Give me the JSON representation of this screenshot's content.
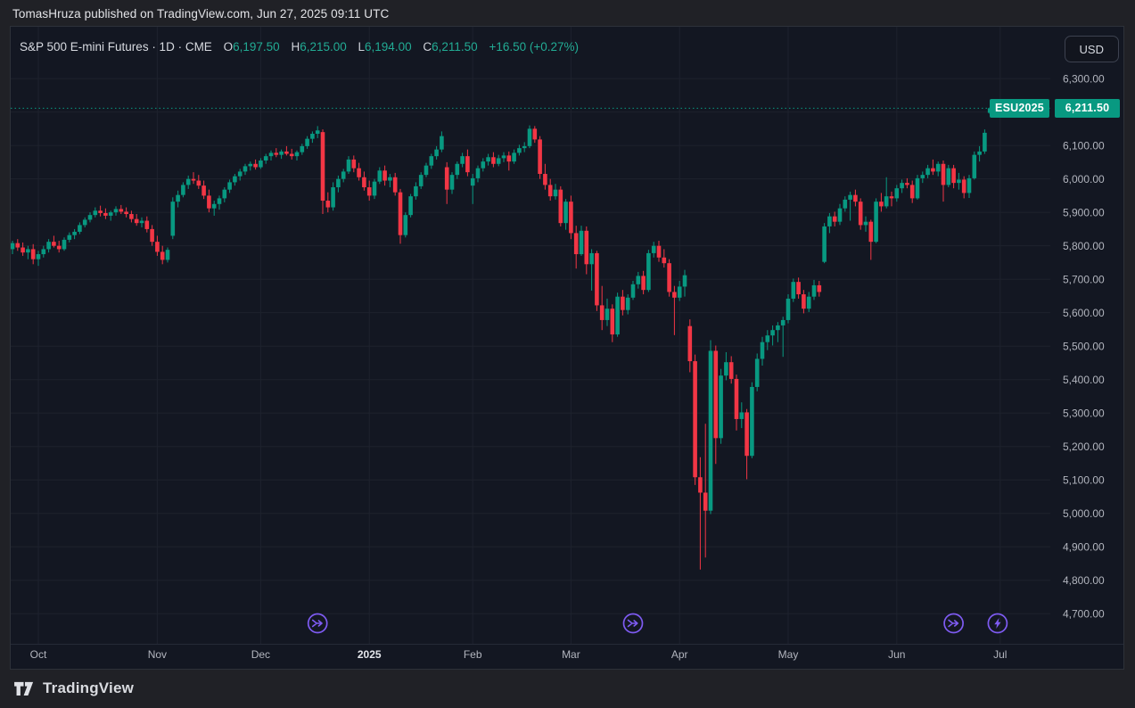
{
  "top_bar": {
    "attribution": "TomasHruza published on TradingView.com, Jun 27, 2025 09:11 UTC"
  },
  "legend": {
    "title": "S&P 500 E-mini Futures · 1D · CME",
    "ohlc": [
      {
        "label": "O",
        "value": "6,197.50"
      },
      {
        "label": "H",
        "value": "6,215.00"
      },
      {
        "label": "L",
        "value": "6,194.00"
      },
      {
        "label": "C",
        "value": "6,211.50"
      }
    ],
    "change": "+16.50 (+0.27%)"
  },
  "currency_button": {
    "label": "USD"
  },
  "price_tag": {
    "symbol": "ESU2025",
    "price": "6,211.50"
  },
  "footer": {
    "brand": "TradingView"
  },
  "colors": {
    "up": "#089981",
    "down": "#f23645",
    "accent_text": "#22ab94",
    "tag_bg": "#089981",
    "event_purple": "#7e5bf2",
    "grid": "#1e222d",
    "axis_text": "#b2b5be",
    "bold_tick_text": "#e4e6eb",
    "panel_bg": "#131722",
    "outer_bg": "#202126"
  },
  "chart_data": {
    "type": "candlestick",
    "title": "S&P 500 E-mini Futures",
    "interval": "1D",
    "exchange": "CME",
    "contract": "ESU2025",
    "currency": "USD",
    "last": {
      "open": 6197.5,
      "high": 6215.0,
      "low": 6194.0,
      "close": 6211.5,
      "change": 16.5,
      "change_pct": 0.27
    },
    "y_axis": {
      "plot_min": 4610,
      "plot_max": 6455,
      "ticks": [
        {
          "value": 6300,
          "label": "6,300.00"
        },
        {
          "value": 6200,
          "label": ""
        },
        {
          "value": 6100,
          "label": "6,100.00"
        },
        {
          "value": 6000,
          "label": "6,000.00"
        },
        {
          "value": 5900,
          "label": "5,900.00"
        },
        {
          "value": 5800,
          "label": "5,800.00"
        },
        {
          "value": 5700,
          "label": "5,700.00"
        },
        {
          "value": 5600,
          "label": "5,600.00"
        },
        {
          "value": 5500,
          "label": "5,500.00"
        },
        {
          "value": 5400,
          "label": "5,400.00"
        },
        {
          "value": 5300,
          "label": "5,300.00"
        },
        {
          "value": 5200,
          "label": "5,200.00"
        },
        {
          "value": 5100,
          "label": "5,100.00"
        },
        {
          "value": 5000,
          "label": "5,000.00"
        },
        {
          "value": 4900,
          "label": "4,900.00"
        },
        {
          "value": 4800,
          "label": "4,800.00"
        },
        {
          "value": 4700,
          "label": "4,700.00"
        }
      ]
    },
    "x_axis": {
      "ticks": [
        {
          "label": "Oct",
          "index": 5
        },
        {
          "label": "Nov",
          "index": 28
        },
        {
          "label": "Dec",
          "index": 48
        },
        {
          "label": "2025",
          "index": 69,
          "bold": true
        },
        {
          "label": "Feb",
          "index": 89
        },
        {
          "label": "Mar",
          "index": 108
        },
        {
          "label": "Apr",
          "index": 129
        },
        {
          "label": "May",
          "index": 150
        },
        {
          "label": "Jun",
          "index": 171
        },
        {
          "label": "Jul",
          "index": 191
        }
      ]
    },
    "events": [
      {
        "icon": "contract-rollover",
        "index": 59
      },
      {
        "icon": "contract-rollover",
        "index": 120
      },
      {
        "icon": "contract-rollover",
        "index": 182
      },
      {
        "icon": "lightning",
        "index": 190.5
      }
    ],
    "candles": [
      [
        5790,
        5815,
        5775,
        5808
      ],
      [
        5808,
        5820,
        5785,
        5795
      ],
      [
        5795,
        5810,
        5770,
        5780
      ],
      [
        5780,
        5800,
        5760,
        5790
      ],
      [
        5790,
        5805,
        5745,
        5760
      ],
      [
        5760,
        5785,
        5740,
        5775
      ],
      [
        5775,
        5800,
        5765,
        5790
      ],
      [
        5790,
        5820,
        5780,
        5812
      ],
      [
        5812,
        5830,
        5795,
        5800
      ],
      [
        5800,
        5815,
        5780,
        5790
      ],
      [
        5790,
        5825,
        5785,
        5818
      ],
      [
        5818,
        5840,
        5810,
        5832
      ],
      [
        5832,
        5850,
        5820,
        5842
      ],
      [
        5842,
        5870,
        5835,
        5862
      ],
      [
        5862,
        5885,
        5855,
        5878
      ],
      [
        5878,
        5900,
        5870,
        5892
      ],
      [
        5892,
        5915,
        5885,
        5905
      ],
      [
        5905,
        5920,
        5888,
        5898
      ],
      [
        5898,
        5912,
        5880,
        5890
      ],
      [
        5890,
        5905,
        5875,
        5900
      ],
      [
        5900,
        5918,
        5890,
        5910
      ],
      [
        5910,
        5922,
        5895,
        5902
      ],
      [
        5902,
        5915,
        5885,
        5895
      ],
      [
        5895,
        5905,
        5870,
        5880
      ],
      [
        5880,
        5895,
        5860,
        5868
      ],
      [
        5868,
        5885,
        5855,
        5875
      ],
      [
        5875,
        5888,
        5840,
        5850
      ],
      [
        5850,
        5862,
        5800,
        5812
      ],
      [
        5812,
        5830,
        5770,
        5782
      ],
      [
        5782,
        5800,
        5745,
        5758
      ],
      [
        5758,
        5795,
        5750,
        5788
      ],
      [
        5830,
        5945,
        5820,
        5932
      ],
      [
        5932,
        5965,
        5915,
        5952
      ],
      [
        5952,
        5990,
        5945,
        5982
      ],
      [
        5982,
        6010,
        5970,
        6000
      ],
      [
        6000,
        6020,
        5985,
        5995
      ],
      [
        5995,
        6012,
        5970,
        5980
      ],
      [
        5980,
        5995,
        5940,
        5950
      ],
      [
        5950,
        5968,
        5900,
        5912
      ],
      [
        5912,
        5935,
        5890,
        5925
      ],
      [
        5925,
        5950,
        5908,
        5942
      ],
      [
        5942,
        5975,
        5930,
        5968
      ],
      [
        5968,
        5998,
        5958,
        5990
      ],
      [
        5990,
        6015,
        5980,
        6008
      ],
      [
        6008,
        6030,
        5995,
        6022
      ],
      [
        6022,
        6045,
        6012,
        6038
      ],
      [
        6038,
        6052,
        6025,
        6045
      ],
      [
        6045,
        6058,
        6028,
        6035
      ],
      [
        6035,
        6062,
        6030,
        6055
      ],
      [
        6055,
        6075,
        6045,
        6068
      ],
      [
        6068,
        6085,
        6055,
        6078
      ],
      [
        6078,
        6092,
        6065,
        6072
      ],
      [
        6072,
        6088,
        6060,
        6082
      ],
      [
        6082,
        6098,
        6070,
        6075
      ],
      [
        6075,
        6090,
        6058,
        6068
      ],
      [
        6068,
        6085,
        6055,
        6080
      ],
      [
        6080,
        6105,
        6072,
        6098
      ],
      [
        6098,
        6128,
        6090,
        6120
      ],
      [
        6120,
        6142,
        6108,
        6135
      ],
      [
        6135,
        6158,
        6122,
        6145
      ],
      [
        6140,
        6148,
        5895,
        5935
      ],
      [
        5935,
        5960,
        5900,
        5915
      ],
      [
        5915,
        5990,
        5905,
        5975
      ],
      [
        5975,
        6010,
        5960,
        6000
      ],
      [
        6000,
        6030,
        5990,
        6022
      ],
      [
        6022,
        6068,
        6015,
        6058
      ],
      [
        6058,
        6070,
        6020,
        6032
      ],
      [
        6032,
        6048,
        5995,
        6005
      ],
      [
        6005,
        6022,
        5965,
        5975
      ],
      [
        5975,
        5995,
        5935,
        5950
      ],
      [
        5950,
        6000,
        5940,
        5992
      ],
      [
        5992,
        6035,
        5985,
        6025
      ],
      [
        6025,
        6040,
        5980,
        5995
      ],
      [
        5995,
        6015,
        5975,
        6005
      ],
      [
        6005,
        6018,
        5950,
        5960
      ],
      [
        5960,
        5970,
        5806,
        5832
      ],
      [
        5832,
        5900,
        5825,
        5892
      ],
      [
        5892,
        5955,
        5885,
        5948
      ],
      [
        5948,
        5990,
        5938,
        5978
      ],
      [
        5978,
        6020,
        5970,
        6012
      ],
      [
        6012,
        6048,
        6005,
        6040
      ],
      [
        6040,
        6075,
        6030,
        6068
      ],
      [
        6068,
        6098,
        6058,
        6088
      ],
      [
        6088,
        6142,
        6080,
        6128
      ],
      [
        6035,
        6050,
        5925,
        5968
      ],
      [
        5968,
        6020,
        5955,
        6012
      ],
      [
        6012,
        6052,
        6000,
        6045
      ],
      [
        6045,
        6078,
        6035,
        6068
      ],
      [
        6068,
        6088,
        6008,
        6020
      ],
      [
        5980,
        6015,
        5925,
        6002
      ],
      [
        6002,
        6040,
        5990,
        6032
      ],
      [
        6032,
        6062,
        6022,
        6052
      ],
      [
        6052,
        6075,
        6040,
        6065
      ],
      [
        6065,
        6080,
        6035,
        6045
      ],
      [
        6045,
        6072,
        6038,
        6062
      ],
      [
        6062,
        6080,
        6050,
        6070
      ],
      [
        6070,
        6082,
        6025,
        6052
      ],
      [
        6052,
        6088,
        6045,
        6078
      ],
      [
        6078,
        6102,
        6070,
        6092
      ],
      [
        6092,
        6110,
        6080,
        6098
      ],
      [
        6098,
        6160,
        6092,
        6150
      ],
      [
        6150,
        6158,
        6108,
        6118
      ],
      [
        6118,
        6128,
        6000,
        6015
      ],
      [
        6015,
        6045,
        5968,
        5982
      ],
      [
        5982,
        6000,
        5935,
        5948
      ],
      [
        5948,
        5985,
        5938,
        5968
      ],
      [
        5968,
        5978,
        5858,
        5868
      ],
      [
        5868,
        5940,
        5848,
        5932
      ],
      [
        5932,
        5950,
        5820,
        5838
      ],
      [
        5838,
        5860,
        5732,
        5775
      ],
      [
        5775,
        5860,
        5770,
        5845
      ],
      [
        5845,
        5858,
        5715,
        5745
      ],
      [
        5745,
        5790,
        5666,
        5778
      ],
      [
        5778,
        5785,
        5605,
        5622
      ],
      [
        5622,
        5680,
        5548,
        5578
      ],
      [
        5578,
        5642,
        5560,
        5612
      ],
      [
        5612,
        5625,
        5512,
        5535
      ],
      [
        5535,
        5660,
        5528,
        5648
      ],
      [
        5648,
        5668,
        5592,
        5608
      ],
      [
        5608,
        5655,
        5595,
        5645
      ],
      [
        5645,
        5695,
        5638,
        5685
      ],
      [
        5685,
        5722,
        5672,
        5710
      ],
      [
        5710,
        5725,
        5655,
        5668
      ],
      [
        5668,
        5788,
        5662,
        5778
      ],
      [
        5778,
        5812,
        5765,
        5800
      ],
      [
        5800,
        5815,
        5752,
        5765
      ],
      [
        5765,
        5790,
        5735,
        5748
      ],
      [
        5748,
        5760,
        5648,
        5662
      ],
      [
        5662,
        5680,
        5533,
        5645
      ],
      [
        5645,
        5695,
        5635,
        5678
      ],
      [
        5678,
        5728,
        5648,
        5712
      ],
      [
        5560,
        5580,
        5422,
        5455
      ],
      [
        5455,
        5475,
        5085,
        5108
      ],
      [
        5108,
        5168,
        4832,
        5062
      ],
      [
        5062,
        5268,
        4868,
        5008
      ],
      [
        5008,
        5518,
        4998,
        5486
      ],
      [
        5486,
        5502,
        5148,
        5225
      ],
      [
        5225,
        5432,
        5208,
        5412
      ],
      [
        5412,
        5482,
        5398,
        5452
      ],
      [
        5452,
        5470,
        5388,
        5402
      ],
      [
        5402,
        5415,
        5248,
        5282
      ],
      [
        5282,
        5332,
        5255,
        5302
      ],
      [
        5302,
        5312,
        5102,
        5172
      ],
      [
        5172,
        5392,
        5165,
        5378
      ],
      [
        5378,
        5478,
        5365,
        5462
      ],
      [
        5462,
        5528,
        5442,
        5512
      ],
      [
        5512,
        5548,
        5488,
        5532
      ],
      [
        5532,
        5562,
        5502,
        5548
      ],
      [
        5548,
        5572,
        5512,
        5562
      ],
      [
        5562,
        5588,
        5468,
        5578
      ],
      [
        5578,
        5655,
        5568,
        5642
      ],
      [
        5642,
        5702,
        5632,
        5692
      ],
      [
        5692,
        5705,
        5642,
        5655
      ],
      [
        5655,
        5668,
        5598,
        5612
      ],
      [
        5612,
        5662,
        5602,
        5648
      ],
      [
        5648,
        5698,
        5638,
        5682
      ],
      [
        5682,
        5695,
        5648,
        5662
      ],
      [
        5752,
        5868,
        5748,
        5858
      ],
      [
        5858,
        5898,
        5838,
        5888
      ],
      [
        5888,
        5902,
        5858,
        5872
      ],
      [
        5872,
        5925,
        5862,
        5912
      ],
      [
        5912,
        5948,
        5902,
        5938
      ],
      [
        5938,
        5962,
        5875,
        5952
      ],
      [
        5952,
        5968,
        5918,
        5932
      ],
      [
        5932,
        5942,
        5848,
        5862
      ],
      [
        5862,
        5888,
        5842,
        5872
      ],
      [
        5872,
        5878,
        5758,
        5812
      ],
      [
        5812,
        5942,
        5808,
        5932
      ],
      [
        5932,
        5958,
        5902,
        5918
      ],
      [
        5918,
        6005,
        5912,
        5948
      ],
      [
        5948,
        5962,
        5918,
        5942
      ],
      [
        5942,
        5982,
        5932,
        5972
      ],
      [
        5972,
        5998,
        5958,
        5988
      ],
      [
        5988,
        6002,
        5972,
        5982
      ],
      [
        5982,
        5995,
        5928,
        5942
      ],
      [
        5942,
        6012,
        5938,
        6002
      ],
      [
        6002,
        6022,
        5988,
        6012
      ],
      [
        6012,
        6042,
        6002,
        6032
      ],
      [
        6032,
        6058,
        6012,
        6022
      ],
      [
        6022,
        6052,
        6008,
        6045
      ],
      [
        6045,
        6055,
        5932,
        5982
      ],
      [
        5982,
        6042,
        5975,
        6032
      ],
      [
        6032,
        6042,
        5972,
        5988
      ],
      [
        5988,
        6018,
        5968,
        5998
      ],
      [
        5998,
        6008,
        5942,
        5958
      ],
      [
        5958,
        6012,
        5943,
        6002
      ],
      [
        6002,
        6082,
        5998,
        6072
      ],
      [
        6072,
        6098,
        6052,
        6082
      ],
      [
        6082,
        6148,
        6075,
        6138
      ],
      [
        6197.5,
        6215,
        6194,
        6211.5
      ]
    ]
  }
}
